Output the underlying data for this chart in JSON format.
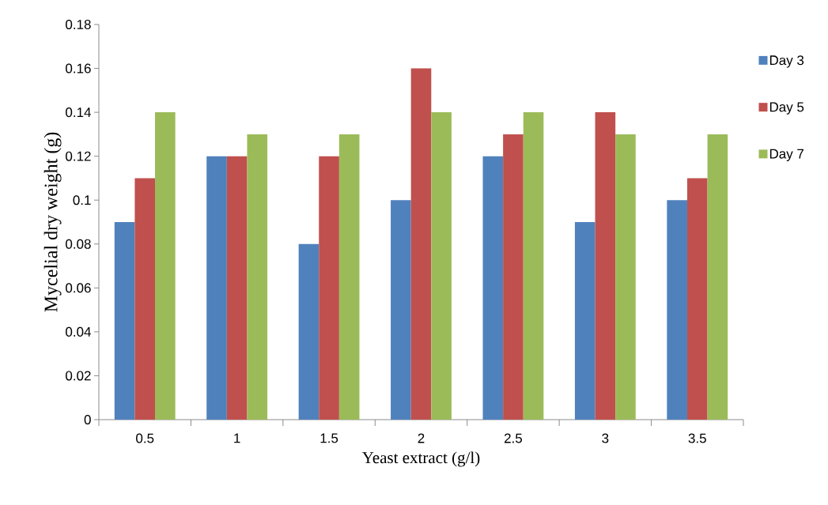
{
  "chart_data": {
    "type": "bar",
    "xlabel": "Yeast extract (g/l)",
    "ylabel": "Mycelial dry weight (g)",
    "categories": [
      "0.5",
      "1",
      "1.5",
      "2",
      "2.5",
      "3",
      "3.5"
    ],
    "series": [
      {
        "name": "Day 3",
        "color": "#4f81bd",
        "values": [
          0.09,
          0.12,
          0.08,
          0.1,
          0.12,
          0.09,
          0.1
        ]
      },
      {
        "name": "Day 5",
        "color": "#c0504d",
        "values": [
          0.11,
          0.12,
          0.12,
          0.16,
          0.13,
          0.14,
          0.11
        ]
      },
      {
        "name": "Day 7",
        "color": "#9bbb59",
        "values": [
          0.14,
          0.13,
          0.13,
          0.14,
          0.14,
          0.13,
          0.13
        ]
      }
    ],
    "ylim": [
      0,
      0.18
    ],
    "yticks": [
      0,
      0.02,
      0.04,
      0.06,
      0.08,
      0.1,
      0.12,
      0.14,
      0.16,
      0.18
    ],
    "grid": false,
    "legend": "right"
  }
}
